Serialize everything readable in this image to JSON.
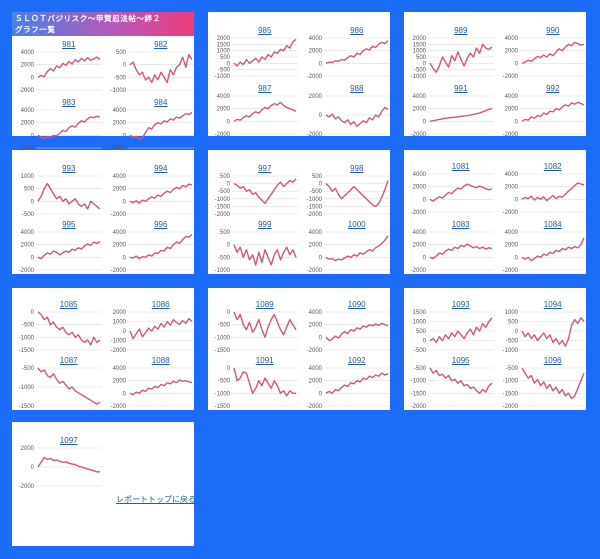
{
  "page_title_line1": "ＳＬＯＴバジリスク～甲賀忍法帖～絆２",
  "page_title_line2": "グラフ一覧",
  "report_link": "レポートトップに戻る",
  "colors": {
    "line": "#d4567e",
    "grid": "#dddddd",
    "background": "#1d6cf7"
  },
  "chart_data": [
    {
      "type": "line",
      "title": "981",
      "yticks": [
        4000,
        2000,
        0,
        -2000
      ],
      "ylim": [
        -2000,
        4000
      ],
      "values": [
        0,
        300,
        100,
        900,
        1400,
        1000,
        1800,
        1500,
        2200,
        1900,
        2500,
        2100,
        2800,
        2400,
        3000,
        2600,
        3100,
        2700,
        2900,
        3200,
        2800
      ]
    },
    {
      "type": "line",
      "title": "982",
      "yticks": [
        500,
        0,
        -500,
        -1000
      ],
      "ylim": [
        -1000,
        500
      ],
      "values": [
        0,
        100,
        -200,
        -400,
        -300,
        -600,
        -500,
        -700,
        -400,
        -600,
        -300,
        -500,
        -700,
        -200,
        -400,
        -100,
        0,
        300,
        -100,
        400,
        200
      ]
    },
    {
      "type": "line",
      "title": "983",
      "yticks": [
        4000,
        2000,
        0,
        -2000
      ],
      "ylim": [
        -2000,
        4000
      ],
      "values": [
        0,
        -300,
        -500,
        -200,
        -400,
        0,
        -100,
        300,
        800,
        600,
        1200,
        1500,
        1300,
        1900,
        2300,
        2100,
        2600,
        2900,
        2800,
        3000,
        2900
      ]
    },
    {
      "type": "line",
      "title": "984",
      "yticks": [
        4000,
        2000,
        0,
        -2000
      ],
      "ylim": [
        -2000,
        4000
      ],
      "values": [
        0,
        -300,
        -200,
        -600,
        -400,
        400,
        1200,
        1000,
        1700,
        2000,
        1800,
        2300,
        2100,
        2600,
        2400,
        2900,
        2700,
        3100,
        3400,
        3300,
        3600
      ]
    },
    {
      "type": "line",
      "title": "985",
      "yticks": [
        2000,
        1500,
        1000,
        500,
        0,
        -500,
        -1000
      ],
      "ylim": [
        -1000,
        2000
      ],
      "values": [
        0,
        -200,
        100,
        -100,
        300,
        0,
        200,
        400,
        100,
        500,
        300,
        700,
        500,
        900,
        800,
        1100,
        1000,
        1400,
        1200,
        1700,
        1900
      ]
    },
    {
      "type": "line",
      "title": "986",
      "yticks": [
        4000,
        2000,
        0,
        -2000
      ],
      "ylim": [
        -2000,
        4000
      ],
      "values": [
        0,
        200,
        100,
        400,
        300,
        600,
        500,
        900,
        1200,
        1000,
        1600,
        1400,
        2000,
        2300,
        2100,
        2700,
        2500,
        3000,
        3300,
        3100,
        3600
      ]
    },
    {
      "type": "line",
      "title": "989",
      "yticks": [
        2000,
        1500,
        1000,
        500,
        0,
        -500,
        -1000
      ],
      "ylim": [
        -1000,
        2000
      ],
      "values": [
        0,
        -400,
        -700,
        -200,
        500,
        100,
        -300,
        600,
        200,
        900,
        300,
        -200,
        400,
        800,
        500,
        1200,
        800,
        1500,
        1200,
        1100,
        1300
      ]
    },
    {
      "type": "line",
      "title": "990",
      "yticks": [
        4000,
        2000,
        0,
        -2000
      ],
      "ylim": [
        -2000,
        4000
      ],
      "values": [
        0,
        200,
        500,
        300,
        700,
        1100,
        900,
        1300,
        1000,
        1500,
        1200,
        1800,
        2300,
        2000,
        2600,
        3000,
        2800,
        3300,
        3100,
        2900,
        3000
      ]
    },
    {
      "type": "line",
      "title": "987",
      "yticks": [
        4000,
        2000,
        0,
        -2000
      ],
      "ylim": [
        -2000,
        4000
      ],
      "values": [
        0,
        300,
        200,
        600,
        900,
        700,
        1200,
        1500,
        1300,
        1800,
        2200,
        2000,
        2500,
        2800,
        2600,
        3000,
        2500,
        2200,
        2000,
        1800,
        1600
      ]
    },
    {
      "type": "line",
      "title": "988",
      "yticks": [
        2000,
        0,
        -2000
      ],
      "ylim": [
        -2000,
        2000
      ],
      "values": [
        0,
        -200,
        100,
        -400,
        -200,
        -600,
        -800,
        -500,
        -1000,
        -700,
        -1200,
        -900,
        -600,
        -800,
        -300,
        -500,
        0,
        -200,
        400,
        800,
        600
      ]
    },
    {
      "type": "line",
      "title": "991",
      "yticks": [
        4000,
        2000,
        0,
        -2000
      ],
      "ylim": [
        -2000,
        4000
      ],
      "values": [
        0,
        100,
        200,
        300,
        400,
        500,
        550,
        600,
        650,
        700,
        800,
        850,
        900,
        1000,
        1100,
        1200,
        1300,
        1500,
        1700,
        1900,
        2000
      ]
    },
    {
      "type": "line",
      "title": "992",
      "yticks": [
        4000,
        2000,
        0,
        -2000
      ],
      "ylim": [
        -2000,
        4000
      ],
      "values": [
        0,
        300,
        200,
        700,
        500,
        900,
        800,
        1300,
        1100,
        1600,
        1500,
        2000,
        1800,
        2300,
        2600,
        2400,
        2900,
        2700,
        3000,
        2800,
        2600
      ]
    },
    {
      "type": "line",
      "title": "993",
      "yticks": [
        1000,
        500,
        0,
        -500
      ],
      "ylim": [
        -500,
        1000
      ],
      "values": [
        0,
        200,
        500,
        700,
        500,
        300,
        100,
        200,
        0,
        100,
        -100,
        0,
        100,
        -100,
        -200,
        -100,
        -300,
        0,
        -100,
        -200,
        -300
      ]
    },
    {
      "type": "line",
      "title": "994",
      "yticks": [
        4000,
        2000,
        0,
        -2000
      ],
      "ylim": [
        -2000,
        4000
      ],
      "values": [
        0,
        -200,
        100,
        -300,
        200,
        0,
        400,
        700,
        500,
        1000,
        800,
        1300,
        1600,
        1400,
        1900,
        2200,
        2000,
        2500,
        2300,
        2700,
        2600
      ]
    },
    {
      "type": "line",
      "title": "997",
      "yticks": [
        500,
        0,
        -500,
        -1000,
        -1500,
        -2000
      ],
      "ylim": [
        -2000,
        500
      ],
      "values": [
        0,
        -100,
        -300,
        -200,
        -500,
        -400,
        -700,
        -600,
        -900,
        -1100,
        -1300,
        -1000,
        -700,
        -400,
        -100,
        100,
        -200,
        0,
        200,
        100,
        300
      ]
    },
    {
      "type": "line",
      "title": "998",
      "yticks": [
        500,
        0,
        -500,
        -1000,
        -1500,
        -2000
      ],
      "ylim": [
        -2000,
        500
      ],
      "values": [
        0,
        -200,
        -500,
        -300,
        -700,
        -1000,
        -800,
        -600,
        -400,
        -200,
        -400,
        -600,
        -800,
        -1000,
        -1200,
        -1400,
        -1500,
        -1300,
        -900,
        -400,
        200
      ]
    },
    {
      "type": "line",
      "title": "995",
      "yticks": [
        4000,
        2000,
        0,
        -2000
      ],
      "ylim": [
        -2000,
        4000
      ],
      "values": [
        0,
        -200,
        300,
        700,
        500,
        1000,
        800,
        400,
        700,
        1000,
        800,
        1300,
        1100,
        1500,
        1300,
        1800,
        2100,
        1900,
        2400,
        2200,
        2500
      ]
    },
    {
      "type": "line",
      "title": "996",
      "yticks": [
        4000,
        2000,
        0,
        -2000
      ],
      "ylim": [
        -2000,
        4000
      ],
      "values": [
        0,
        -100,
        200,
        -200,
        100,
        0,
        400,
        200,
        700,
        600,
        1100,
        1000,
        1600,
        1400,
        2000,
        2400,
        2200,
        2800,
        3300,
        3200,
        3600
      ]
    },
    {
      "type": "line",
      "title": "999",
      "yticks": [
        500,
        0,
        -500,
        -1000
      ],
      "ylim": [
        -1000,
        500
      ],
      "values": [
        0,
        -300,
        -100,
        -500,
        -200,
        -600,
        -400,
        -800,
        -300,
        -700,
        -200,
        -500,
        -800,
        -400,
        -200,
        -600,
        -300,
        -100,
        -400,
        -200,
        -500
      ]
    },
    {
      "type": "line",
      "title": "1000",
      "yticks": [
        4000,
        2000,
        0,
        -2000
      ],
      "ylim": [
        -2000,
        4000
      ],
      "values": [
        0,
        -300,
        -200,
        -500,
        -300,
        -400,
        -100,
        200,
        0,
        400,
        200,
        700,
        500,
        900,
        1200,
        1000,
        1500,
        1800,
        2200,
        2700,
        3400
      ]
    },
    {
      "type": "line",
      "title": "1081",
      "yticks": [
        4000,
        2000,
        0,
        -2000
      ],
      "ylim": [
        -2000,
        4000
      ],
      "values": [
        0,
        -300,
        100,
        400,
        200,
        700,
        1100,
        900,
        1400,
        1800,
        1600,
        2100,
        2400,
        2200,
        2000,
        1800,
        2100,
        1900,
        1700,
        1500,
        1700
      ]
    },
    {
      "type": "line",
      "title": "1082",
      "yticks": [
        4000,
        2000,
        0,
        -2000
      ],
      "ylim": [
        -2000,
        4000
      ],
      "values": [
        0,
        300,
        100,
        500,
        -100,
        300,
        0,
        400,
        -200,
        200,
        600,
        100,
        500,
        300,
        800,
        1300,
        1700,
        2200,
        2600,
        2400,
        2300
      ]
    },
    {
      "type": "line",
      "title": "1083",
      "yticks": [
        4000,
        2000,
        0,
        -2000
      ],
      "ylim": [
        -2000,
        4000
      ],
      "values": [
        0,
        -200,
        200,
        700,
        500,
        1000,
        1300,
        1100,
        1600,
        1400,
        1900,
        1700,
        2100,
        1800,
        1500,
        1700,
        1400,
        1600,
        1300,
        1500,
        1400
      ]
    },
    {
      "type": "line",
      "title": "1084",
      "yticks": [
        4000,
        2000,
        0,
        -2000
      ],
      "ylim": [
        -2000,
        4000
      ],
      "values": [
        0,
        -300,
        0,
        -500,
        -200,
        200,
        0,
        500,
        300,
        800,
        600,
        1100,
        900,
        1400,
        1200,
        1600,
        1400,
        1700,
        1500,
        2000,
        3100
      ]
    },
    {
      "type": "line",
      "title": "1085",
      "yticks": [
        0,
        -500,
        -1000,
        -1500
      ],
      "ylim": [
        -1500,
        0
      ],
      "values": [
        0,
        -100,
        -300,
        -200,
        -500,
        -400,
        -600,
        -700,
        -600,
        -800,
        -900,
        -800,
        -1000,
        -900,
        -1100,
        -1200,
        -1100,
        -1300,
        -1000,
        -1200,
        -1100
      ]
    },
    {
      "type": "line",
      "title": "1086",
      "yticks": [
        2000,
        1000,
        0,
        -1000,
        -2000
      ],
      "ylim": [
        -2000,
        2000
      ],
      "values": [
        0,
        -800,
        -300,
        200,
        -600,
        -200,
        300,
        0,
        500,
        200,
        800,
        400,
        1000,
        600,
        1200,
        900,
        700,
        1100,
        800,
        1300,
        1000
      ]
    },
    {
      "type": "line",
      "title": "1087",
      "yticks": [
        -500,
        -1000,
        -1500
      ],
      "ylim": [
        -1500,
        -500
      ],
      "values": [
        -500,
        -600,
        -550,
        -700,
        -750,
        -650,
        -800,
        -900,
        -850,
        -950,
        -1050,
        -1000,
        -1100,
        -1150,
        -1200,
        -1250,
        -1300,
        -1350,
        -1400,
        -1450,
        -1400
      ]
    },
    {
      "type": "line",
      "title": "1088",
      "yticks": [
        4000,
        2000,
        0,
        -2000
      ],
      "ylim": [
        -2000,
        4000
      ],
      "values": [
        0,
        -200,
        200,
        0,
        500,
        300,
        800,
        700,
        1100,
        900,
        1400,
        1200,
        1700,
        1500,
        1900,
        1700,
        2100,
        1900,
        2000,
        1800,
        1700
      ]
    },
    {
      "type": "line",
      "title": "1089",
      "yticks": [
        0,
        -500,
        -1000,
        -1500
      ],
      "ylim": [
        -1500,
        0
      ],
      "values": [
        0,
        -300,
        -100,
        -500,
        -700,
        -400,
        -800,
        -600,
        -300,
        -700,
        -1000,
        -600,
        -300,
        -100,
        -400,
        -700,
        -900,
        -600,
        -300,
        -500,
        -700
      ]
    },
    {
      "type": "line",
      "title": "1090",
      "yticks": [
        4000,
        2000,
        0,
        -2000
      ],
      "ylim": [
        -2000,
        4000
      ],
      "values": [
        0,
        -500,
        -300,
        200,
        -100,
        500,
        900,
        600,
        1200,
        1000,
        1500,
        1300,
        1800,
        1600,
        2000,
        1800,
        2100,
        1900,
        2200,
        2000,
        1800
      ]
    },
    {
      "type": "line",
      "title": "1091",
      "yticks": [
        0,
        -500,
        -1000,
        -1500
      ],
      "ylim": [
        -1500,
        0
      ],
      "values": [
        0,
        -500,
        -400,
        -150,
        -200,
        -600,
        -1000,
        -800,
        -500,
        -700,
        -400,
        -600,
        -800,
        -500,
        -700,
        -1000,
        -900,
        -1100,
        -900,
        -1000,
        -1000
      ]
    },
    {
      "type": "line",
      "title": "1092",
      "yticks": [
        4000,
        2000,
        0,
        -2000
      ],
      "ylim": [
        -2000,
        4000
      ],
      "values": [
        0,
        300,
        0,
        600,
        400,
        900,
        1300,
        1100,
        1700,
        1500,
        2000,
        1800,
        2400,
        2200,
        2700,
        2500,
        2900,
        2700,
        3200,
        2900,
        3100
      ]
    },
    {
      "type": "line",
      "title": "1093",
      "yticks": [
        1500,
        1000,
        500,
        0,
        -500
      ],
      "ylim": [
        -500,
        1500
      ],
      "values": [
        0,
        100,
        -100,
        200,
        0,
        300,
        100,
        400,
        200,
        500,
        300,
        100,
        400,
        600,
        300,
        700,
        500,
        900,
        700,
        1000,
        1200
      ]
    },
    {
      "type": "line",
      "title": "1094",
      "yticks": [
        1000,
        500,
        0,
        -500,
        -1000
      ],
      "ylim": [
        -1000,
        1000
      ],
      "values": [
        0,
        -300,
        -100,
        -400,
        -200,
        -500,
        -300,
        -100,
        -400,
        -200,
        -600,
        -400,
        -700,
        -500,
        -800,
        -400,
        300,
        600,
        400,
        700,
        500
      ]
    },
    {
      "type": "line",
      "title": "1095",
      "yticks": [
        -500,
        -1000,
        -1500,
        -2000
      ],
      "ylim": [
        -2000,
        -500
      ],
      "values": [
        -500,
        -700,
        -600,
        -800,
        -750,
        -900,
        -800,
        -1000,
        -950,
        -1100,
        -1000,
        -1200,
        -1150,
        -1300,
        -1250,
        -1400,
        -1500,
        -1350,
        -1450,
        -1200,
        -1100
      ]
    },
    {
      "type": "line",
      "title": "1096",
      "yticks": [
        -500,
        -1000,
        -1500,
        -2000
      ],
      "ylim": [
        -2000,
        -500
      ],
      "values": [
        -500,
        -700,
        -900,
        -800,
        -1100,
        -950,
        -1200,
        -1050,
        -1300,
        -1150,
        -1400,
        -1250,
        -1500,
        -1350,
        -1600,
        -1500,
        -1700,
        -1600,
        -1300,
        -1000,
        -700
      ]
    },
    {
      "type": "line",
      "title": "1097",
      "yticks": [
        2000,
        0,
        -2000
      ],
      "ylim": [
        -2000,
        2000
      ],
      "values": [
        0,
        500,
        1000,
        800,
        900,
        700,
        750,
        600,
        500,
        550,
        400,
        300,
        250,
        100,
        0,
        -100,
        -200,
        -300,
        -400,
        -500,
        -500
      ]
    }
  ]
}
